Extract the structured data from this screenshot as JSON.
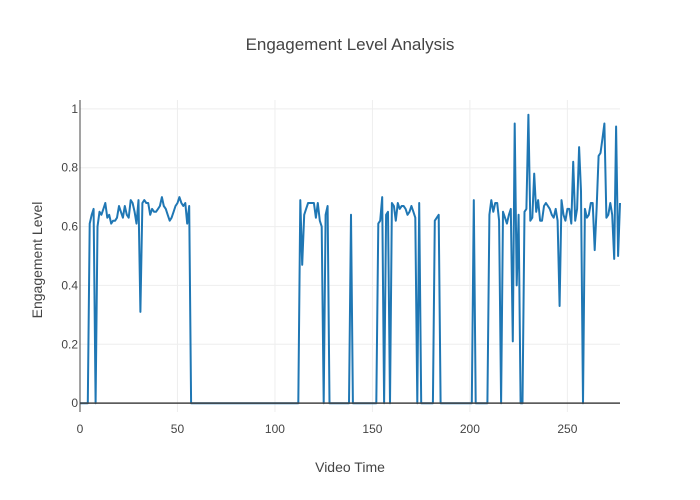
{
  "chart_data": {
    "type": "line",
    "title": "Engagement Level Analysis",
    "xlabel": "Video Time",
    "ylabel": "Engagement Level",
    "xlim": [
      0,
      277
    ],
    "ylim": [
      -0.03,
      1.03
    ],
    "xticks": [
      0,
      50,
      100,
      150,
      200,
      250
    ],
    "yticks": [
      0,
      0.2,
      0.4,
      0.6,
      0.8,
      1
    ],
    "ytick_labels": [
      "0",
      "0.2",
      "0.4",
      "0.6",
      "0.8",
      "1"
    ],
    "grid": true,
    "color": "#1f77b4",
    "series": [
      {
        "x": [
          0,
          1,
          2,
          3,
          4,
          5,
          6,
          7,
          8,
          9,
          10,
          11,
          12,
          13,
          14,
          15,
          16,
          17,
          18,
          19,
          20,
          21,
          22,
          23,
          24,
          25,
          26,
          27,
          28,
          29,
          30,
          31,
          32,
          33,
          34,
          35,
          36,
          37,
          38,
          39,
          40,
          41,
          42,
          43,
          44,
          45,
          46,
          47,
          48,
          49,
          50,
          51,
          52,
          53,
          54,
          55,
          56,
          57,
          58,
          59,
          60,
          70,
          80,
          90,
          100,
          110,
          112,
          113,
          114,
          115,
          116,
          117,
          118,
          119,
          120,
          121,
          122,
          123,
          124,
          125,
          126,
          127,
          128,
          130,
          135,
          138,
          139,
          140,
          145,
          150,
          152,
          153,
          154,
          155,
          156,
          157,
          158,
          159,
          160,
          161,
          162,
          163,
          164,
          165,
          166,
          167,
          168,
          169,
          170,
          171,
          172,
          173,
          174,
          175,
          178,
          181,
          182,
          183,
          184,
          185,
          186,
          190,
          195,
          200,
          201,
          202,
          203,
          206,
          208,
          209,
          210,
          211,
          212,
          213,
          214,
          215,
          216,
          217,
          218,
          219,
          220,
          221,
          222,
          223,
          224,
          225,
          226,
          227,
          228,
          229,
          230,
          231,
          232,
          233,
          234,
          235,
          236,
          237,
          238,
          239,
          240,
          241,
          242,
          243,
          244,
          245,
          246,
          247,
          248,
          249,
          250,
          251,
          252,
          253,
          254,
          255,
          256,
          257,
          258,
          259,
          260,
          261,
          262,
          263,
          264,
          265,
          266,
          267,
          268,
          269,
          270,
          271,
          272,
          273,
          274,
          275,
          276,
          277
        ],
        "y": [
          0,
          0,
          0,
          0,
          0,
          0.61,
          0.64,
          0.66,
          0,
          0.6,
          0.65,
          0.64,
          0.66,
          0.68,
          0.63,
          0.64,
          0.61,
          0.62,
          0.62,
          0.63,
          0.67,
          0.65,
          0.63,
          0.67,
          0.64,
          0.63,
          0.69,
          0.68,
          0.65,
          0.61,
          0.69,
          0.31,
          0.68,
          0.69,
          0.68,
          0.68,
          0.64,
          0.66,
          0.65,
          0.65,
          0.66,
          0.67,
          0.7,
          0.67,
          0.66,
          0.64,
          0.62,
          0.63,
          0.65,
          0.67,
          0.68,
          0.7,
          0.68,
          0.67,
          0.68,
          0.61,
          0.67,
          0,
          0,
          0,
          0,
          0,
          0,
          0,
          0,
          0,
          0,
          0.69,
          0.47,
          0.64,
          0.66,
          0.68,
          0.68,
          0.68,
          0.68,
          0.63,
          0.68,
          0.62,
          0.6,
          0,
          0.64,
          0.67,
          0,
          0,
          0,
          0,
          0.64,
          0,
          0,
          0,
          0,
          0.61,
          0.62,
          0.7,
          0,
          0.64,
          0.65,
          0,
          0.68,
          0.67,
          0.62,
          0.68,
          0.66,
          0.67,
          0.67,
          0.66,
          0.64,
          0.65,
          0.67,
          0.65,
          0.63,
          0,
          0.68,
          0,
          0,
          0,
          0.62,
          0.63,
          0.64,
          0,
          0,
          0,
          0,
          0,
          0,
          0.69,
          0,
          0,
          0,
          0,
          0.64,
          0.69,
          0.65,
          0.68,
          0.68,
          0.62,
          0,
          0.65,
          0.63,
          0.61,
          0.64,
          0.66,
          0.21,
          0.95,
          0.4,
          0.64,
          0,
          0,
          0.65,
          0.66,
          0.98,
          0.62,
          0.63,
          0.78,
          0.65,
          0.69,
          0.62,
          0.62,
          0.67,
          0.68,
          0.67,
          0.66,
          0.64,
          0.63,
          0.66,
          0.62,
          0.33,
          0.69,
          0.64,
          0.62,
          0.66,
          0.66,
          0.61,
          0.82,
          0.62,
          0.66,
          0.87,
          0.72,
          0,
          0.66,
          0.63,
          0.64,
          0.68,
          0.68,
          0.52,
          0.66,
          0.84,
          0.85,
          0.9,
          0.95,
          0.63,
          0.64,
          0.68,
          0.64,
          0.49,
          0.94,
          0.5,
          0.68
        ]
      }
    ]
  }
}
